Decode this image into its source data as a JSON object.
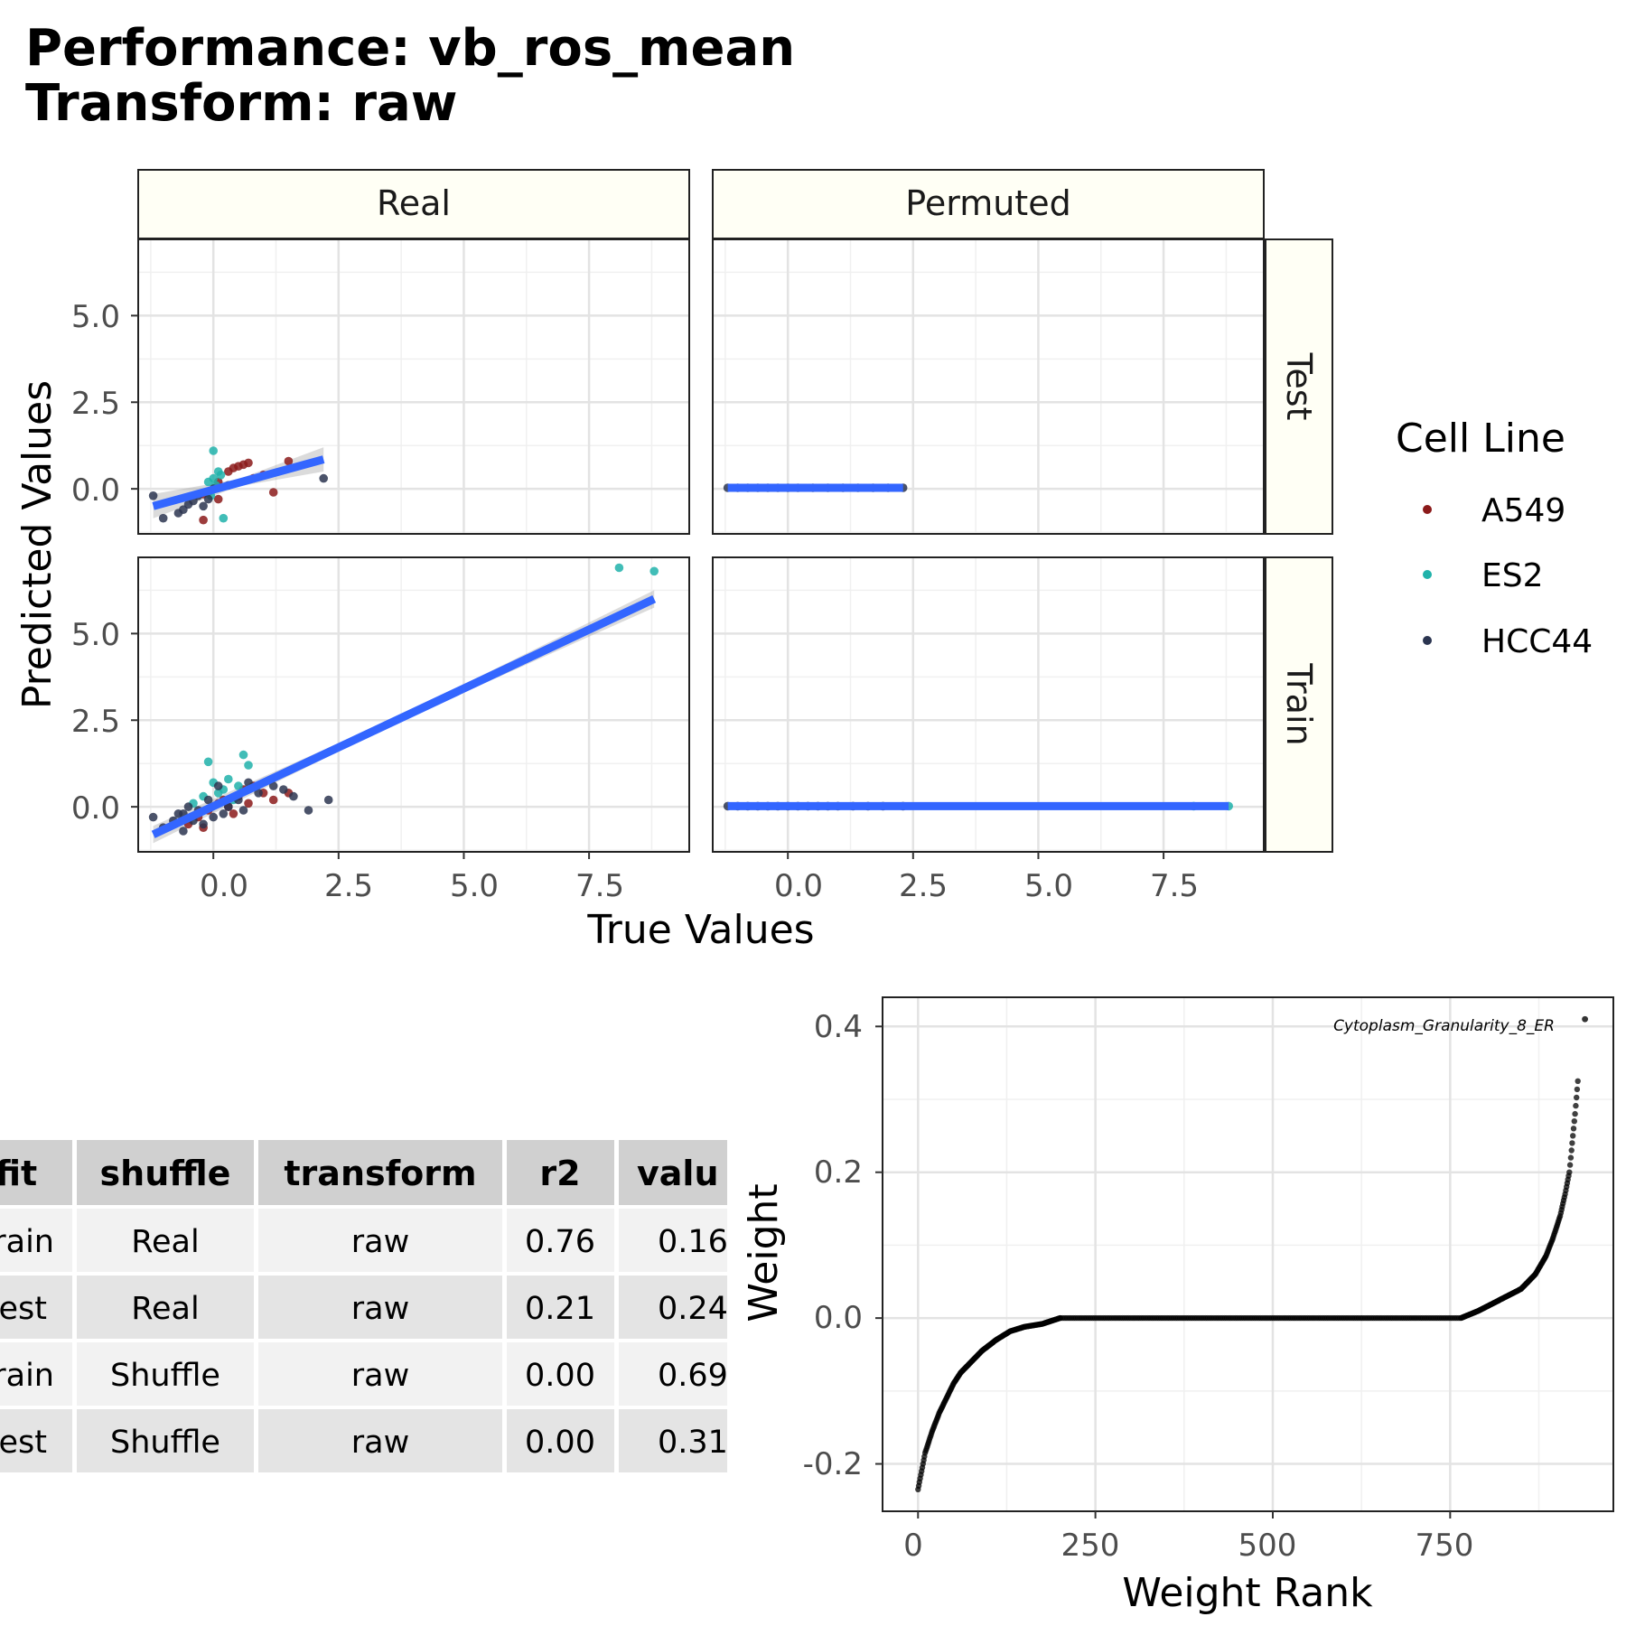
{
  "title": {
    "line1": "Performance: vb_ros_mean",
    "line2": "Transform: raw"
  },
  "scatter_panel": {
    "xlabel": "True Values",
    "ylabel": "Predicted Values",
    "col_strips": [
      "Real",
      "Permuted"
    ],
    "row_strips": [
      "Test",
      "Train"
    ],
    "x_ticks": [
      "0.0",
      "2.5",
      "5.0",
      "7.5"
    ],
    "y_ticks": [
      "0.0",
      "2.5",
      "5.0"
    ],
    "legend": {
      "title": "Cell Line",
      "items": [
        {
          "label": "A549",
          "color": "#8B1A1A"
        },
        {
          "label": "ES2",
          "color": "#20B2AA"
        },
        {
          "label": "HCC44",
          "color": "#2B3550"
        }
      ]
    }
  },
  "table": {
    "headers": [
      "fit",
      "shuffle",
      "transform",
      "r2",
      "value"
    ],
    "visible_headers": [
      "fit",
      "shuffle",
      "transform",
      "r2",
      "valu"
    ],
    "rows": [
      [
        "Train",
        "Real",
        "raw",
        "0.76",
        "0.16"
      ],
      [
        "Test",
        "Real",
        "raw",
        "0.21",
        "0.24"
      ],
      [
        "Train",
        "Shuffle",
        "raw",
        "0.00",
        "0.69"
      ],
      [
        "Test",
        "Shuffle",
        "raw",
        "0.00",
        "0.31"
      ]
    ],
    "visible_first_col": [
      "rain",
      "est",
      "rain",
      "est"
    ]
  },
  "weight_panel": {
    "xlabel": "Weight Rank",
    "ylabel": "Weight",
    "x_ticks": [
      "0",
      "250",
      "500",
      "750"
    ],
    "y_ticks": [
      "-0.2",
      "0.0",
      "0.2",
      "0.4"
    ],
    "annotation": "Cytoplasm_Granularity_8_ER"
  },
  "chart_data": [
    {
      "type": "scatter",
      "facet": {
        "column": "Real",
        "row": "Test"
      },
      "xlim": [
        -1.5,
        9.5
      ],
      "ylim": [
        -1.3,
        7.2
      ],
      "fit_line": {
        "x": [
          -1.2,
          2.2
        ],
        "y": [
          -0.5,
          0.85
        ]
      },
      "series": [
        {
          "name": "A549",
          "points": [
            [
              -0.2,
              -0.15
            ],
            [
              -0.1,
              -0.1
            ],
            [
              0.1,
              0.2
            ],
            [
              0.3,
              0.5
            ],
            [
              0.4,
              0.6
            ],
            [
              0.5,
              0.65
            ],
            [
              0.6,
              0.7
            ],
            [
              0.7,
              0.75
            ],
            [
              1.5,
              0.8
            ],
            [
              1.0,
              0.4
            ],
            [
              1.2,
              -0.1
            ],
            [
              -0.2,
              -0.9
            ],
            [
              0.1,
              -0.3
            ],
            [
              0.8,
              0.3
            ]
          ]
        },
        {
          "name": "ES2",
          "points": [
            [
              0.0,
              1.1
            ],
            [
              0.1,
              0.5
            ],
            [
              0.0,
              0.3
            ],
            [
              -0.1,
              0.2
            ],
            [
              0.05,
              0.1
            ],
            [
              0.2,
              -0.85
            ],
            [
              -0.05,
              -0.2
            ],
            [
              0.15,
              0.4
            ]
          ]
        },
        {
          "name": "HCC44",
          "points": [
            [
              -1.2,
              -0.2
            ],
            [
              -1.0,
              -0.85
            ],
            [
              -0.6,
              -0.6
            ],
            [
              -0.4,
              -0.35
            ],
            [
              -0.2,
              -0.5
            ],
            [
              -0.1,
              -0.3
            ],
            [
              0.0,
              0.0
            ],
            [
              2.2,
              0.3
            ],
            [
              -0.5,
              -0.45
            ],
            [
              -0.3,
              -0.2
            ],
            [
              -0.7,
              -0.7
            ],
            [
              0.3,
              0.1
            ]
          ]
        }
      ]
    },
    {
      "type": "scatter",
      "facet": {
        "column": "Permuted",
        "row": "Test"
      },
      "xlim": [
        -1.5,
        9.5
      ],
      "ylim": [
        -1.3,
        7.2
      ],
      "fit_line": {
        "x": [
          -1.2,
          2.3
        ],
        "y": [
          0.03,
          0.03
        ]
      },
      "series": [
        {
          "name": "HCC44",
          "points": [
            [
              -1.2,
              0.03
            ],
            [
              -1.0,
              0.03
            ],
            [
              -0.8,
              0.03
            ],
            [
              -0.6,
              0.03
            ],
            [
              -0.4,
              0.03
            ],
            [
              -0.2,
              0.03
            ],
            [
              0.0,
              0.03
            ],
            [
              0.2,
              0.03
            ],
            [
              0.5,
              0.03
            ],
            [
              0.8,
              0.03
            ],
            [
              1.1,
              0.03
            ],
            [
              1.4,
              0.03
            ],
            [
              1.7,
              0.03
            ],
            [
              2.0,
              0.03
            ],
            [
              2.3,
              0.03
            ]
          ]
        }
      ]
    },
    {
      "type": "scatter",
      "facet": {
        "column": "Real",
        "row": "Train"
      },
      "xlim": [
        -1.5,
        9.5
      ],
      "ylim": [
        -1.3,
        7.2
      ],
      "fit_line": {
        "x": [
          -1.2,
          8.8
        ],
        "y": [
          -0.8,
          6.0
        ]
      },
      "series": [
        {
          "name": "A549",
          "points": [
            [
              -0.5,
              -0.5
            ],
            [
              -0.3,
              -0.3
            ],
            [
              -0.1,
              -0.1
            ],
            [
              0.1,
              0.1
            ],
            [
              0.2,
              0.2
            ],
            [
              0.3,
              0.0
            ],
            [
              0.5,
              0.3
            ],
            [
              0.6,
              0.5
            ],
            [
              0.8,
              0.6
            ],
            [
              1.0,
              0.4
            ],
            [
              1.2,
              0.2
            ],
            [
              1.5,
              0.4
            ],
            [
              0.4,
              -0.2
            ],
            [
              -0.2,
              -0.6
            ],
            [
              0.7,
              0.1
            ]
          ]
        },
        {
          "name": "ES2",
          "points": [
            [
              8.1,
              6.9
            ],
            [
              8.8,
              6.8
            ],
            [
              0.6,
              1.5
            ],
            [
              0.7,
              1.2
            ],
            [
              -0.1,
              1.3
            ],
            [
              0.0,
              0.7
            ],
            [
              0.3,
              0.8
            ],
            [
              0.1,
              0.4
            ],
            [
              -0.2,
              0.3
            ],
            [
              0.2,
              0.5
            ],
            [
              0.4,
              0.2
            ],
            [
              -0.4,
              0.1
            ],
            [
              0.5,
              0.6
            ]
          ]
        },
        {
          "name": "HCC44",
          "points": [
            [
              -1.2,
              -0.3
            ],
            [
              -1.0,
              -0.6
            ],
            [
              -0.8,
              -0.4
            ],
            [
              -0.7,
              -0.2
            ],
            [
              -0.6,
              -0.7
            ],
            [
              -0.5,
              0.0
            ],
            [
              -0.4,
              -0.4
            ],
            [
              -0.3,
              -0.1
            ],
            [
              -0.2,
              -0.5
            ],
            [
              -0.1,
              0.2
            ],
            [
              0.0,
              -0.3
            ],
            [
              0.1,
              0.6
            ],
            [
              0.2,
              -0.2
            ],
            [
              0.3,
              0.0
            ],
            [
              0.5,
              0.2
            ],
            [
              0.7,
              0.7
            ],
            [
              0.9,
              0.4
            ],
            [
              1.2,
              0.6
            ],
            [
              1.4,
              0.5
            ],
            [
              1.6,
              0.3
            ],
            [
              1.9,
              -0.1
            ],
            [
              2.3,
              0.2
            ],
            [
              -0.6,
              -0.2
            ],
            [
              0.6,
              -0.1
            ]
          ]
        }
      ]
    },
    {
      "type": "scatter",
      "facet": {
        "column": "Permuted",
        "row": "Train"
      },
      "xlim": [
        -1.5,
        9.5
      ],
      "ylim": [
        -1.3,
        7.2
      ],
      "fit_line": {
        "x": [
          -1.2,
          8.8
        ],
        "y": [
          0.02,
          0.02
        ]
      },
      "series": [
        {
          "name": "HCC44",
          "points": [
            [
              -1.2,
              0.02
            ],
            [
              -1.0,
              0.02
            ],
            [
              -0.8,
              0.02
            ],
            [
              -0.6,
              0.02
            ],
            [
              -0.4,
              0.02
            ],
            [
              -0.2,
              0.02
            ],
            [
              0.0,
              0.02
            ],
            [
              0.2,
              0.02
            ],
            [
              0.4,
              0.02
            ],
            [
              0.6,
              0.02
            ],
            [
              0.8,
              0.02
            ],
            [
              1.0,
              0.02
            ],
            [
              1.3,
              0.02
            ],
            [
              1.6,
              0.02
            ],
            [
              1.9,
              0.02
            ],
            [
              2.3,
              0.02
            ]
          ]
        },
        {
          "name": "ES2",
          "points": [
            [
              8.1,
              0.02
            ],
            [
              8.8,
              0.02
            ]
          ]
        }
      ]
    },
    {
      "type": "scatter",
      "title": "",
      "xlabel": "Weight Rank",
      "ylabel": "Weight",
      "xlim": [
        -50,
        980
      ],
      "ylim": [
        -0.265,
        0.44
      ],
      "n_points": 930,
      "curve_knots": [
        [
          0,
          -0.235
        ],
        [
          5,
          -0.21
        ],
        [
          10,
          -0.185
        ],
        [
          20,
          -0.155
        ],
        [
          30,
          -0.13
        ],
        [
          40,
          -0.11
        ],
        [
          50,
          -0.09
        ],
        [
          60,
          -0.075
        ],
        [
          75,
          -0.06
        ],
        [
          90,
          -0.045
        ],
        [
          110,
          -0.03
        ],
        [
          130,
          -0.018
        ],
        [
          150,
          -0.012
        ],
        [
          175,
          -0.008
        ],
        [
          200,
          0.0
        ],
        [
          765,
          0.0
        ],
        [
          790,
          0.01
        ],
        [
          820,
          0.025
        ],
        [
          850,
          0.04
        ],
        [
          870,
          0.06
        ],
        [
          885,
          0.085
        ],
        [
          895,
          0.11
        ],
        [
          905,
          0.14
        ],
        [
          912,
          0.17
        ],
        [
          918,
          0.2
        ],
        [
          922,
          0.24
        ],
        [
          926,
          0.28
        ],
        [
          930,
          0.325
        ]
      ],
      "outlier": {
        "x": 940,
        "y": 0.41,
        "label": "Cytoplasm_Granularity_8_ER"
      }
    }
  ]
}
